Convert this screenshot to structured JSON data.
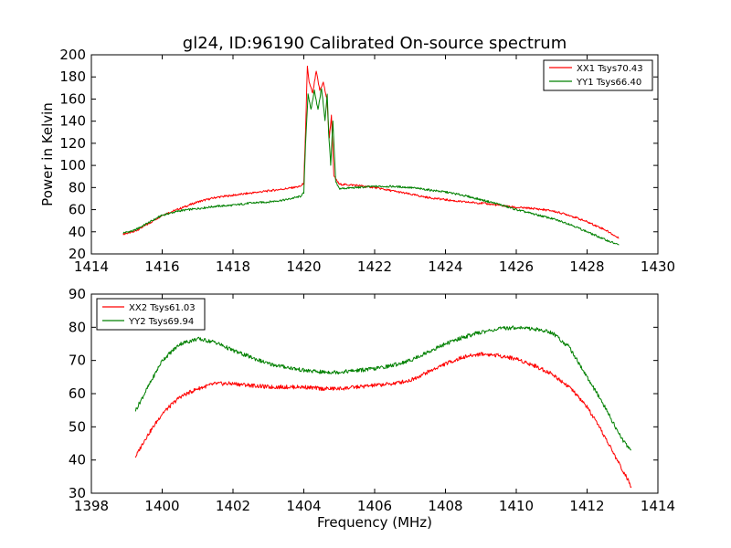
{
  "title": "gl24, ID:96190 Calibrated On-source spectrum",
  "chart_data": [
    {
      "type": "line",
      "title": "gl24, ID:96190 Calibrated On-source spectrum",
      "xlabel": "",
      "ylabel": "Power in Kelvin",
      "xlim": [
        1414,
        1430
      ],
      "ylim": [
        20,
        200
      ],
      "xticks": [
        "1414",
        "1416",
        "1418",
        "1420",
        "1422",
        "1424",
        "1426",
        "1428",
        "1430"
      ],
      "yticks": [
        "20",
        "40",
        "60",
        "80",
        "100",
        "120",
        "140",
        "160",
        "180",
        "200"
      ],
      "legend_position": "top-right",
      "grid": false,
      "series": [
        {
          "name": "XX1 Tsys70.43",
          "color": "#ff0000",
          "points": [
            [
              1414.9,
              38
            ],
            [
              1415.2,
              40
            ],
            [
              1415.6,
              47
            ],
            [
              1416,
              55
            ],
            [
              1416.5,
              61
            ],
            [
              1417,
              67
            ],
            [
              1417.5,
              71
            ],
            [
              1418,
              73
            ],
            [
              1418.5,
              75
            ],
            [
              1419,
              77
            ],
            [
              1419.5,
              79
            ],
            [
              1419.9,
              81
            ],
            [
              1420.0,
              84
            ],
            [
              1420.05,
              130
            ],
            [
              1420.1,
              190
            ],
            [
              1420.15,
              175
            ],
            [
              1420.25,
              165
            ],
            [
              1420.35,
              185
            ],
            [
              1420.45,
              168
            ],
            [
              1420.55,
              175
            ],
            [
              1420.65,
              160
            ],
            [
              1420.72,
              125
            ],
            [
              1420.78,
              145
            ],
            [
              1420.85,
              90
            ],
            [
              1421.0,
              83
            ],
            [
              1421.5,
              82
            ],
            [
              1422,
              80
            ],
            [
              1422.5,
              77
            ],
            [
              1423,
              74
            ],
            [
              1423.5,
              71
            ],
            [
              1424,
              69
            ],
            [
              1424.5,
              67
            ],
            [
              1425,
              66
            ],
            [
              1425.5,
              64
            ],
            [
              1426,
              62
            ],
            [
              1426.5,
              61
            ],
            [
              1427,
              59
            ],
            [
              1427.5,
              55
            ],
            [
              1428,
              49
            ],
            [
              1428.5,
              42
            ],
            [
              1428.9,
              34
            ]
          ]
        },
        {
          "name": "YY1 Tsys66.40",
          "color": "#008000",
          "points": [
            [
              1414.9,
              39
            ],
            [
              1415.2,
              41
            ],
            [
              1415.6,
              48
            ],
            [
              1416,
              55
            ],
            [
              1416.5,
              59
            ],
            [
              1417,
              61
            ],
            [
              1417.5,
              63
            ],
            [
              1418,
              64
            ],
            [
              1418.5,
              66
            ],
            [
              1419,
              67
            ],
            [
              1419.5,
              69
            ],
            [
              1419.9,
              72
            ],
            [
              1420.0,
              75
            ],
            [
              1420.05,
              120
            ],
            [
              1420.12,
              165
            ],
            [
              1420.2,
              150
            ],
            [
              1420.3,
              168
            ],
            [
              1420.4,
              150
            ],
            [
              1420.5,
              170
            ],
            [
              1420.6,
              140
            ],
            [
              1420.66,
              165
            ],
            [
              1420.7,
              130
            ],
            [
              1420.76,
              100
            ],
            [
              1420.82,
              140
            ],
            [
              1420.9,
              85
            ],
            [
              1421.0,
              79
            ],
            [
              1421.5,
              80
            ],
            [
              1422,
              81
            ],
            [
              1422.5,
              81
            ],
            [
              1423,
              80
            ],
            [
              1423.5,
              78
            ],
            [
              1424,
              76
            ],
            [
              1424.5,
              73
            ],
            [
              1425,
              69
            ],
            [
              1425.5,
              65
            ],
            [
              1426,
              60
            ],
            [
              1426.5,
              56
            ],
            [
              1427,
              52
            ],
            [
              1427.5,
              47
            ],
            [
              1428,
              40
            ],
            [
              1428.5,
              33
            ],
            [
              1428.9,
              28
            ]
          ]
        }
      ]
    },
    {
      "type": "line",
      "title": "",
      "xlabel": "Frequency (MHz)",
      "ylabel": "",
      "xlim": [
        1398,
        1414
      ],
      "ylim": [
        30,
        90
      ],
      "xticks": [
        "1398",
        "1400",
        "1402",
        "1404",
        "1406",
        "1408",
        "1410",
        "1412",
        "1414"
      ],
      "yticks": [
        "30",
        "40",
        "50",
        "60",
        "70",
        "80",
        "90"
      ],
      "legend_position": "top-left",
      "grid": false,
      "series": [
        {
          "name": "XX2 Tsys61.03",
          "color": "#ff0000",
          "points": [
            [
              1399.25,
              41
            ],
            [
              1399.5,
              46
            ],
            [
              1400,
              54
            ],
            [
              1400.5,
              59
            ],
            [
              1401,
              61.5
            ],
            [
              1401.5,
              63
            ],
            [
              1402,
              63
            ],
            [
              1402.5,
              62.5
            ],
            [
              1403,
              62
            ],
            [
              1403.5,
              62
            ],
            [
              1404,
              62
            ],
            [
              1404.5,
              61.5
            ],
            [
              1405,
              61.5
            ],
            [
              1405.5,
              62
            ],
            [
              1406,
              62.5
            ],
            [
              1406.5,
              63
            ],
            [
              1407,
              64
            ],
            [
              1407.5,
              66.5
            ],
            [
              1408,
              69
            ],
            [
              1408.5,
              71
            ],
            [
              1409,
              72
            ],
            [
              1409.5,
              71.5
            ],
            [
              1410,
              70.5
            ],
            [
              1410.5,
              68.5
            ],
            [
              1411,
              66
            ],
            [
              1411.5,
              62
            ],
            [
              1412,
              56
            ],
            [
              1412.5,
              47
            ],
            [
              1413,
              37
            ],
            [
              1413.25,
              32
            ]
          ]
        },
        {
          "name": "YY2 Tsys69.94",
          "color": "#008000",
          "points": [
            [
              1399.25,
              55
            ],
            [
              1399.5,
              60
            ],
            [
              1400,
              70
            ],
            [
              1400.5,
              75
            ],
            [
              1401,
              76.5
            ],
            [
              1401.5,
              75.5
            ],
            [
              1402,
              73
            ],
            [
              1402.5,
              71
            ],
            [
              1403,
              69
            ],
            [
              1403.5,
              68
            ],
            [
              1404,
              67
            ],
            [
              1404.5,
              66.5
            ],
            [
              1405,
              66.5
            ],
            [
              1405.5,
              67
            ],
            [
              1406,
              67.5
            ],
            [
              1406.5,
              68.5
            ],
            [
              1407,
              70
            ],
            [
              1407.5,
              72.5
            ],
            [
              1408,
              75
            ],
            [
              1408.5,
              77
            ],
            [
              1409,
              78.5
            ],
            [
              1409.5,
              79.5
            ],
            [
              1410,
              80
            ],
            [
              1410.5,
              79.5
            ],
            [
              1411,
              78.5
            ],
            [
              1411.5,
              74
            ],
            [
              1412,
              65
            ],
            [
              1412.5,
              56
            ],
            [
              1413,
              46
            ],
            [
              1413.25,
              43
            ]
          ]
        }
      ]
    }
  ]
}
